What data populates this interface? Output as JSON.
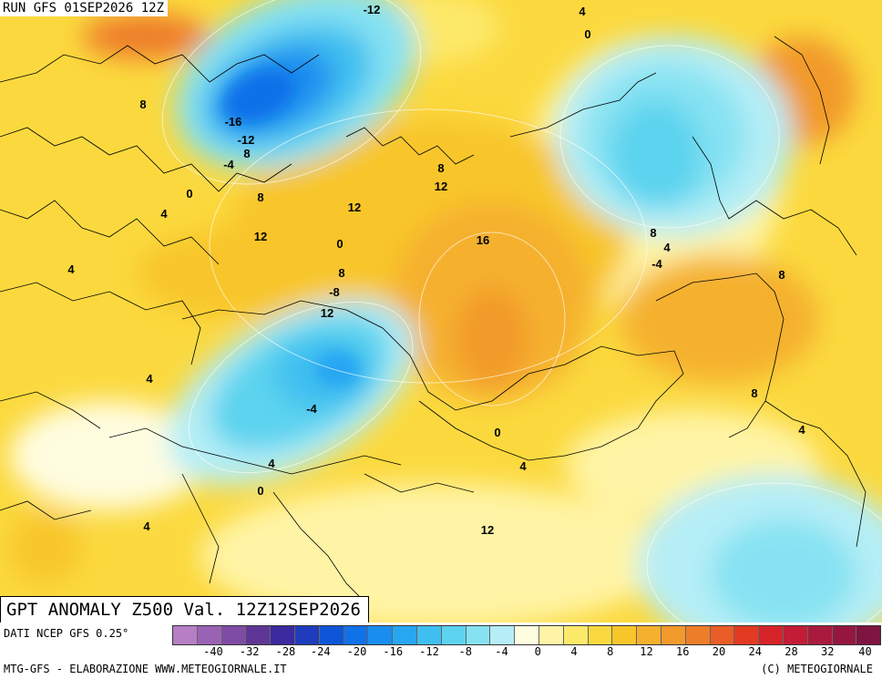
{
  "run_label": "RUN GFS 01SEP2026 12Z",
  "title": "GPT ANOMALY Z500 Val. 12Z12SEP2026",
  "footer": {
    "data_source": "DATI NCEP GFS 0.25°",
    "credit_left": "MTG-GFS - ELABORAZIONE WWW.METEOGIORNALE.IT",
    "credit_right": "(C) METEOGIORNALE"
  },
  "legend": {
    "colors": [
      "#b67ec4",
      "#9a62b4",
      "#7e4ca4",
      "#5f3696",
      "#3b2a9e",
      "#1f3cbd",
      "#0f55d8",
      "#1171e8",
      "#1a8df0",
      "#27a6f2",
      "#3fbff0",
      "#5cd3ef",
      "#86e2f2",
      "#b5eef6",
      "#fffde0",
      "#fff4a5",
      "#fde96a",
      "#fbd93e",
      "#f8c62a",
      "#f5b12d",
      "#f29a2c",
      "#ee7d2a",
      "#e95d26",
      "#e33a22",
      "#d62329",
      "#c21c36",
      "#aa1a3e",
      "#951740",
      "#7e1440"
    ],
    "tick_labels": [
      "-40",
      "-32",
      "-28",
      "-24",
      "-20",
      "-16",
      "-12",
      "-8",
      "-4",
      "0",
      "4",
      "8",
      "12",
      "16",
      "20",
      "24",
      "28",
      "32",
      "40"
    ]
  },
  "contour_labels": [
    "-12",
    "4",
    "0",
    "8",
    "-16",
    "-12",
    "8",
    "-4",
    "8",
    "0",
    "8",
    "12",
    "4",
    "12",
    "8",
    "16",
    "12",
    "4",
    "0",
    "-4",
    "8",
    "4",
    "8",
    "-8",
    "12",
    "4",
    "8",
    "-4",
    "0",
    "4",
    "4",
    "4",
    "0",
    "4",
    "12"
  ]
}
